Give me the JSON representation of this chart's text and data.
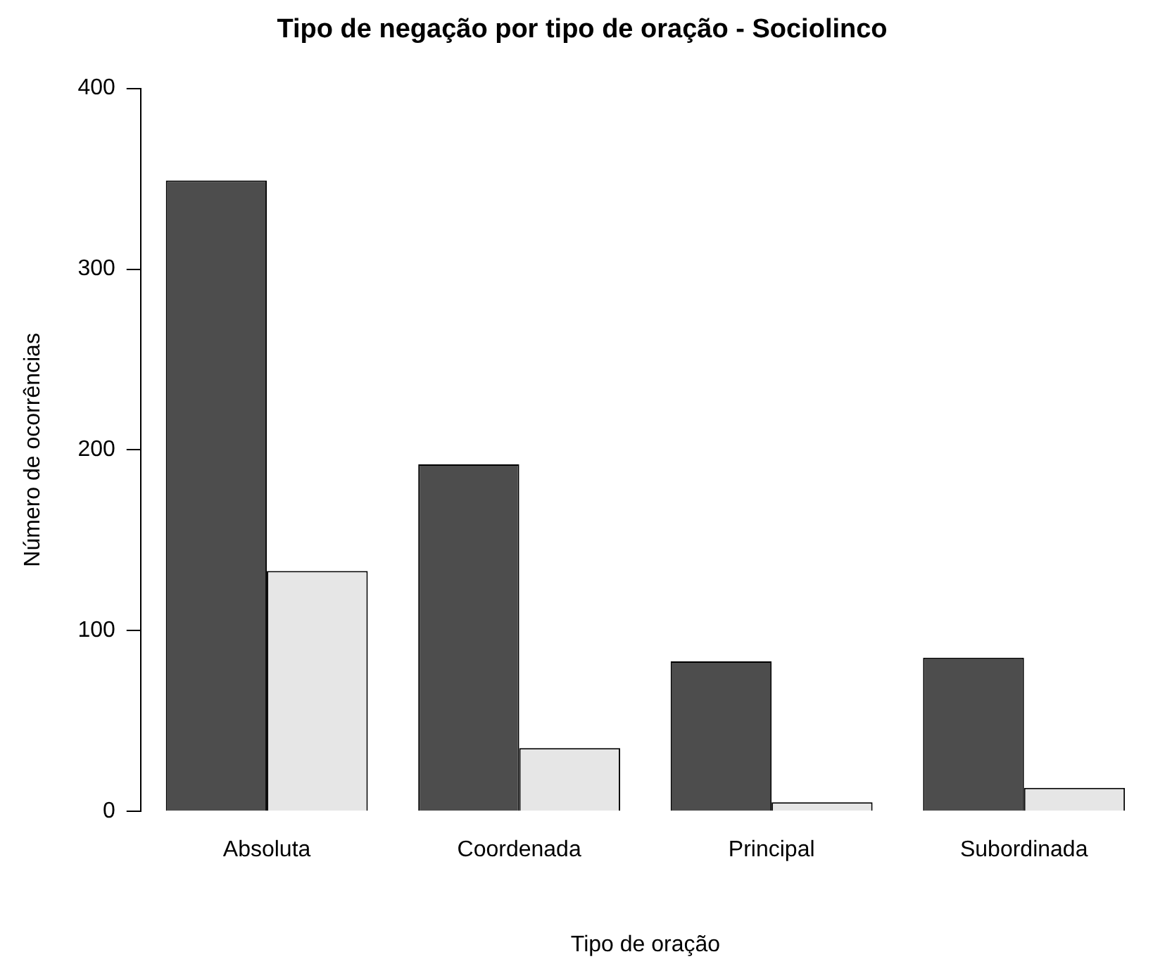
{
  "chart_data": {
    "type": "bar",
    "title": "Tipo de negação por tipo de oração - Sociolinco",
    "xlabel": "Tipo de oração",
    "ylabel": "Número de ocorrências",
    "categories": [
      "Absoluta",
      "Coordenada",
      "Principal",
      "Subordinada"
    ],
    "series": [
      {
        "color": "#4d4d4d",
        "values": [
          349,
          192,
          83,
          85
        ]
      },
      {
        "color": "#e6e6e6",
        "values": [
          133,
          35,
          5,
          13
        ]
      }
    ],
    "ylim": [
      0,
      400
    ],
    "yticks": [
      0,
      100,
      200,
      300,
      400
    ],
    "grid": false,
    "legend": false
  }
}
